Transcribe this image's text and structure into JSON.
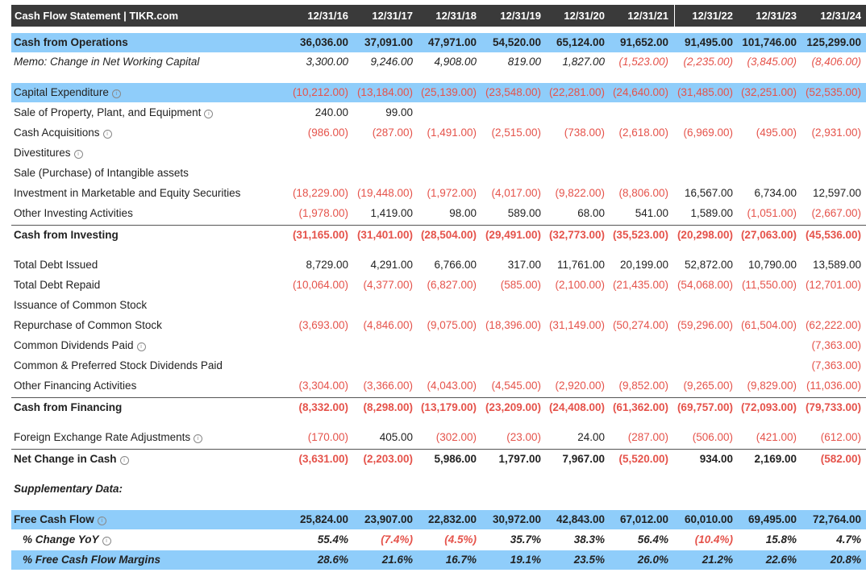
{
  "header": {
    "title": "Cash Flow Statement | TIKR.com",
    "dates": [
      "12/31/16",
      "12/31/17",
      "12/31/18",
      "12/31/19",
      "12/31/20",
      "12/31/21",
      "12/31/22",
      "12/31/23",
      "12/31/24"
    ]
  },
  "colors": {
    "accent_blue": "#8fcdfa",
    "negative_red": "#e5534b",
    "header_bg": "#3a3a3a"
  },
  "rows": [
    {
      "label": "Cash from Operations",
      "style": "blue bold",
      "values": [
        "36,036.00",
        "37,091.00",
        "47,971.00",
        "54,520.00",
        "65,124.00",
        "91,652.00",
        "91,495.00",
        "101,746.00",
        "125,299.00"
      ]
    },
    {
      "label": "Memo: Change in Net Working Capital",
      "style": "italic",
      "values": [
        "3,300.00",
        "9,246.00",
        "4,908.00",
        "819.00",
        "1,827.00",
        "(1,523.00)",
        "(2,235.00)",
        "(3,845.00)",
        "(8,406.00)"
      ]
    },
    {
      "label": "Capital Expenditure",
      "style": "blue",
      "icon": "info-icon",
      "values": [
        "(10,212.00)",
        "(13,184.00)",
        "(25,139.00)",
        "(23,548.00)",
        "(22,281.00)",
        "(24,640.00)",
        "(31,485.00)",
        "(32,251.00)",
        "(52,535.00)"
      ]
    },
    {
      "label": "Sale of Property, Plant, and Equipment",
      "icon": "info-icon",
      "values": [
        "240.00",
        "99.00",
        "",
        "",
        "",
        "",
        "",
        "",
        ""
      ]
    },
    {
      "label": "Cash Acquisitions",
      "icon": "info-icon",
      "values": [
        "(986.00)",
        "(287.00)",
        "(1,491.00)",
        "(2,515.00)",
        "(738.00)",
        "(2,618.00)",
        "(6,969.00)",
        "(495.00)",
        "(2,931.00)"
      ]
    },
    {
      "label": "Divestitures",
      "icon": "info-icon",
      "values": [
        "",
        "",
        "",
        "",
        "",
        "",
        "",
        "",
        ""
      ]
    },
    {
      "label": "Sale (Purchase) of Intangible assets",
      "values": [
        "",
        "",
        "",
        "",
        "",
        "",
        "",
        "",
        ""
      ]
    },
    {
      "label": "Investment in Marketable and Equity Securities",
      "values": [
        "(18,229.00)",
        "(19,448.00)",
        "(1,972.00)",
        "(4,017.00)",
        "(9,822.00)",
        "(8,806.00)",
        "16,567.00",
        "6,734.00",
        "12,597.00"
      ]
    },
    {
      "label": "Other Investing Activities",
      "values": [
        "(1,978.00)",
        "1,419.00",
        "98.00",
        "589.00",
        "68.00",
        "541.00",
        "1,589.00",
        "(1,051.00)",
        "(2,667.00)"
      ]
    },
    {
      "label": "Cash from Investing",
      "style": "bold",
      "values": [
        "(31,165.00)",
        "(31,401.00)",
        "(28,504.00)",
        "(29,491.00)",
        "(32,773.00)",
        "(35,523.00)",
        "(20,298.00)",
        "(27,063.00)",
        "(45,536.00)"
      ]
    },
    {
      "label": "Total Debt Issued",
      "values": [
        "8,729.00",
        "4,291.00",
        "6,766.00",
        "317.00",
        "11,761.00",
        "20,199.00",
        "52,872.00",
        "10,790.00",
        "13,589.00"
      ]
    },
    {
      "label": "Total Debt Repaid",
      "values": [
        "(10,064.00)",
        "(4,377.00)",
        "(6,827.00)",
        "(585.00)",
        "(2,100.00)",
        "(21,435.00)",
        "(54,068.00)",
        "(11,550.00)",
        "(12,701.00)"
      ]
    },
    {
      "label": "Issuance of Common Stock",
      "values": [
        "",
        "",
        "",
        "",
        "",
        "",
        "",
        "",
        ""
      ]
    },
    {
      "label": "Repurchase of Common Stock",
      "values": [
        "(3,693.00)",
        "(4,846.00)",
        "(9,075.00)",
        "(18,396.00)",
        "(31,149.00)",
        "(50,274.00)",
        "(59,296.00)",
        "(61,504.00)",
        "(62,222.00)"
      ]
    },
    {
      "label": "Common Dividends Paid",
      "icon": "info-icon",
      "values": [
        "",
        "",
        "",
        "",
        "",
        "",
        "",
        "",
        "(7,363.00)"
      ]
    },
    {
      "label": "Common & Preferred Stock Dividends Paid",
      "values": [
        "",
        "",
        "",
        "",
        "",
        "",
        "",
        "",
        "(7,363.00)"
      ]
    },
    {
      "label": "Other Financing Activities",
      "values": [
        "(3,304.00)",
        "(3,366.00)",
        "(4,043.00)",
        "(4,545.00)",
        "(2,920.00)",
        "(9,852.00)",
        "(9,265.00)",
        "(9,829.00)",
        "(11,036.00)"
      ]
    },
    {
      "label": "Cash from Financing",
      "style": "bold",
      "values": [
        "(8,332.00)",
        "(8,298.00)",
        "(13,179.00)",
        "(23,209.00)",
        "(24,408.00)",
        "(61,362.00)",
        "(69,757.00)",
        "(72,093.00)",
        "(79,733.00)"
      ]
    },
    {
      "label": "Foreign Exchange Rate Adjustments",
      "icon": "info-icon",
      "values": [
        "(170.00)",
        "405.00",
        "(302.00)",
        "(23.00)",
        "24.00",
        "(287.00)",
        "(506.00)",
        "(421.00)",
        "(612.00)"
      ]
    },
    {
      "label": "Net Change in Cash",
      "style": "bold",
      "icon": "info-icon",
      "values": [
        "(3,631.00)",
        "(2,203.00)",
        "5,986.00",
        "1,797.00",
        "7,967.00",
        "(5,520.00)",
        "934.00",
        "2,169.00",
        "(582.00)"
      ]
    },
    {
      "label": "Supplementary Data:",
      "style": "bold italic",
      "values": [
        "",
        "",
        "",
        "",
        "",
        "",
        "",
        "",
        ""
      ]
    },
    {
      "label": "Free Cash Flow",
      "style": "blue bold",
      "icon": "info-icon",
      "values": [
        "25,824.00",
        "23,907.00",
        "22,832.00",
        "30,972.00",
        "42,843.00",
        "67,012.00",
        "60,010.00",
        "69,495.00",
        "72,764.00"
      ]
    },
    {
      "label": "% Change YoY",
      "style": "bold italic indent",
      "icon": "info-icon",
      "values": [
        "55.4%",
        "(7.4%)",
        "(4.5%)",
        "35.7%",
        "38.3%",
        "56.4%",
        "(10.4%)",
        "15.8%",
        "4.7%"
      ]
    },
    {
      "label": "% Free Cash Flow Margins",
      "style": "blue bold italic indent",
      "values": [
        "28.6%",
        "21.6%",
        "16.7%",
        "19.1%",
        "23.5%",
        "26.0%",
        "21.2%",
        "22.6%",
        "20.8%"
      ]
    }
  ]
}
